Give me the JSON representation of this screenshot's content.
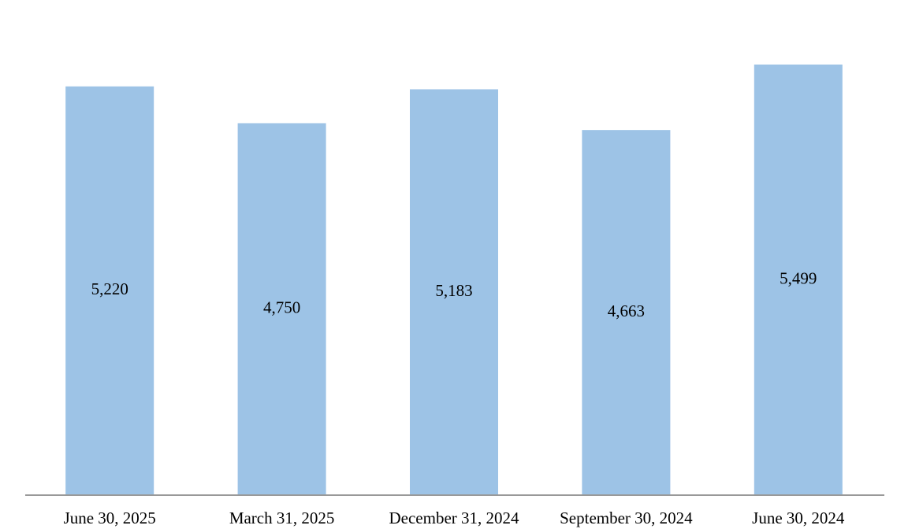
{
  "chart_data": {
    "type": "bar",
    "categories": [
      "June 30, 2025",
      "March 31, 2025",
      "December 31, 2024",
      "September 30, 2024",
      "June 30, 2024"
    ],
    "values": [
      5220,
      4750,
      5183,
      4663,
      5499
    ],
    "value_labels": [
      "5,220",
      "4,750",
      "5,183",
      "4,663",
      "5,499"
    ],
    "color": "#9dc3e6"
  }
}
